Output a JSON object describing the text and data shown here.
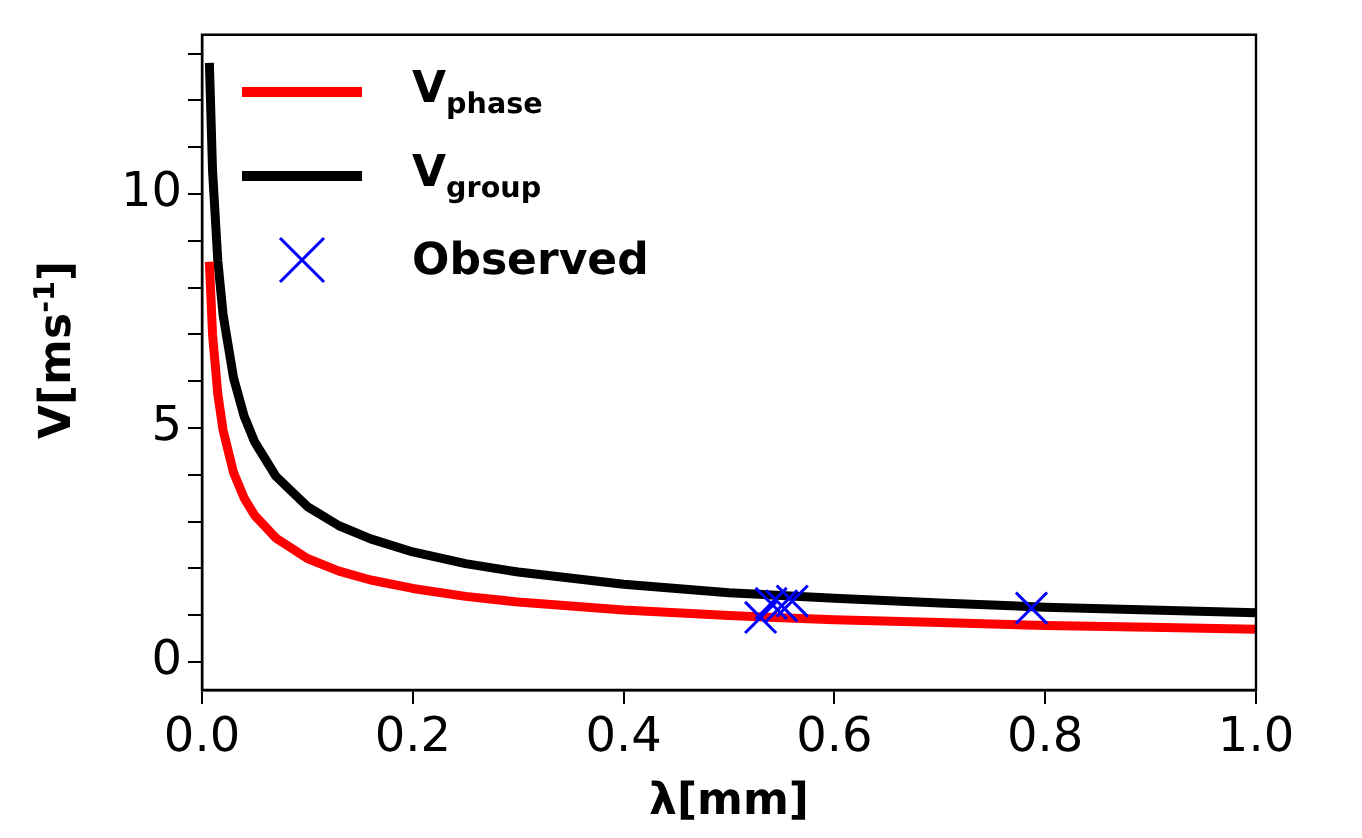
{
  "chart_data": {
    "type": "line",
    "xlabel": "λ[mm]",
    "ylabel": "V[ms$^{-1}$]",
    "xlim": [
      0,
      1
    ],
    "ylim": [
      -0.6,
      13.4
    ],
    "xticks": [
      {
        "value": 0,
        "label": "0.0"
      },
      {
        "value": 0.2,
        "label": "0.2"
      },
      {
        "value": 0.4,
        "label": "0.4"
      },
      {
        "value": 0.6,
        "label": "0.6"
      },
      {
        "value": 0.8,
        "label": "0.8"
      },
      {
        "value": 1,
        "label": "1.0"
      }
    ],
    "yticks": [
      0,
      {
        "value": 1,
        "label": null
      },
      {
        "value": 2,
        "label": null
      },
      {
        "value": 3,
        "label": null
      },
      {
        "value": 4,
        "label": null
      },
      5,
      {
        "value": 6,
        "label": null
      },
      {
        "value": 7,
        "label": null
      },
      {
        "value": 8,
        "label": null
      },
      {
        "value": 9,
        "label": null
      },
      10,
      {
        "value": 11,
        "label": null
      },
      {
        "value": 12,
        "label": null
      },
      {
        "value": 13,
        "label": null
      }
    ],
    "grid": false,
    "legend": "top left",
    "line_style": "solid",
    "series": [
      {
        "name": "V$_{phase}$",
        "color": "#ff0000",
        "marker": "none",
        "x": [
          0.007,
          0.01,
          0.015,
          0.02,
          0.03,
          0.04,
          0.05,
          0.07,
          0.1,
          0.13,
          0.16,
          0.2,
          0.25,
          0.3,
          0.4,
          0.5,
          0.6,
          0.7,
          0.8,
          0.9,
          1.0
        ],
        "values": [
          8.55,
          7.0,
          5.72,
          4.95,
          4.04,
          3.5,
          3.13,
          2.65,
          2.21,
          1.94,
          1.75,
          1.57,
          1.4,
          1.28,
          1.11,
          0.99,
          0.9,
          0.84,
          0.78,
          0.74,
          0.7
        ]
      },
      {
        "name": "V$_{group}$",
        "color": "#000000",
        "marker": "none",
        "x": [
          0.007,
          0.01,
          0.015,
          0.02,
          0.03,
          0.04,
          0.05,
          0.07,
          0.1,
          0.13,
          0.16,
          0.2,
          0.25,
          0.3,
          0.4,
          0.5,
          0.6,
          0.7,
          0.8,
          0.9,
          1.0
        ],
        "values": [
          12.8,
          10.5,
          8.57,
          7.42,
          6.06,
          5.25,
          4.7,
          3.97,
          3.32,
          2.91,
          2.63,
          2.35,
          2.1,
          1.92,
          1.66,
          1.48,
          1.36,
          1.26,
          1.17,
          1.11,
          1.05
        ]
      },
      {
        "name": "Observed",
        "type": "scatter",
        "color": "#0000ff",
        "marker": "cross",
        "x": [
          0.53,
          0.54,
          0.55,
          0.56,
          0.787
        ],
        "values": [
          0.95,
          1.25,
          1.2,
          1.3,
          1.15
        ]
      }
    ]
  }
}
